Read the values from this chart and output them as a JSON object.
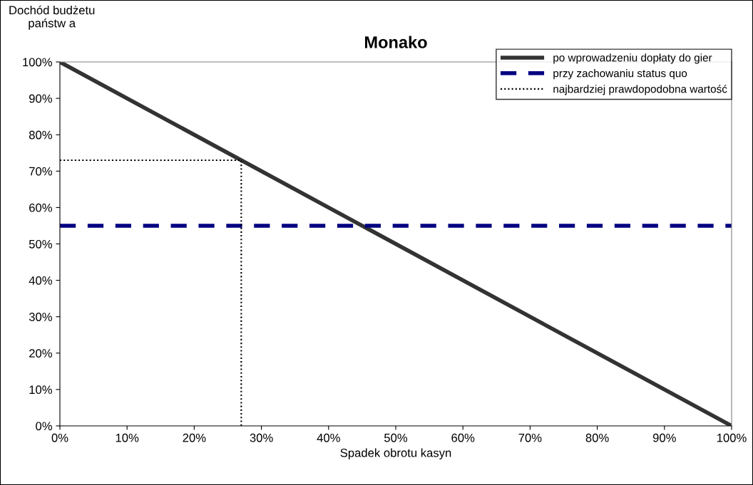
{
  "chart_data": {
    "type": "line",
    "title": "Monako",
    "xlabel": "Spadek obrotu kasyn",
    "ylabel": "Dochód budżetu\npaństw a",
    "series": [
      {
        "name": "po wprowadzeniu dopłaty do gier",
        "color": "#333333",
        "x": [
          0,
          100
        ],
        "values": [
          100,
          0
        ],
        "line_style": "solid"
      },
      {
        "name": "przy zachowaniu status quo",
        "color": "#000080",
        "x": [
          0,
          100
        ],
        "values": [
          55,
          55
        ],
        "line_style": "dashed"
      },
      {
        "name": "najbardziej prawdopodobna wartość",
        "color": "#000000",
        "x": [
          0,
          27,
          27
        ],
        "values": [
          73,
          73,
          0
        ],
        "line_style": "dotted"
      }
    ],
    "xlim": [
      0,
      100
    ],
    "ylim": [
      0,
      100
    ],
    "xticks": [
      {
        "value": 0,
        "label": "0%"
      },
      {
        "value": 10,
        "label": "10%"
      },
      {
        "value": 20,
        "label": "20%"
      },
      {
        "value": 30,
        "label": "30%"
      },
      {
        "value": 40,
        "label": "40%"
      },
      {
        "value": 50,
        "label": "50%"
      },
      {
        "value": 60,
        "label": "60%"
      },
      {
        "value": 70,
        "label": "70%"
      },
      {
        "value": 80,
        "label": "80%"
      },
      {
        "value": 90,
        "label": "90%"
      },
      {
        "value": 100,
        "label": "100%"
      }
    ],
    "yticks": [
      {
        "value": 0,
        "label": "0%"
      },
      {
        "value": 10,
        "label": "10%"
      },
      {
        "value": 20,
        "label": "20%"
      },
      {
        "value": 30,
        "label": "30%"
      },
      {
        "value": 40,
        "label": "40%"
      },
      {
        "value": 50,
        "label": "50%"
      },
      {
        "value": 60,
        "label": "60%"
      },
      {
        "value": 70,
        "label": "70%"
      },
      {
        "value": 80,
        "label": "80%"
      },
      {
        "value": 90,
        "label": "90%"
      },
      {
        "value": 100,
        "label": "100%"
      }
    ],
    "grid": false,
    "legend": "top right",
    "marker": "none"
  }
}
